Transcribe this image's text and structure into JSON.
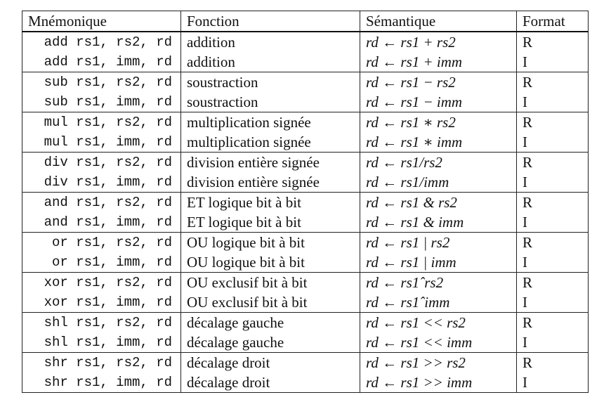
{
  "headers": {
    "mnemonic": "Mnémonique",
    "function": "Fonction",
    "semantic": "Sémantique",
    "format": "Format"
  },
  "rows": [
    {
      "mnemonic": "add rs1, rs2, rd",
      "function": "addition",
      "semantic": "rd ← rs1 + rs2",
      "format": "R"
    },
    {
      "mnemonic": "add rs1, imm, rd",
      "function": "addition",
      "semantic": "rd ← rs1 + imm",
      "format": "I"
    },
    {
      "mnemonic": "sub rs1, rs2, rd",
      "function": "soustraction",
      "semantic": "rd ← rs1 − rs2",
      "format": "R"
    },
    {
      "mnemonic": "sub rs1, imm, rd",
      "function": "soustraction",
      "semantic": "rd ← rs1 − imm",
      "format": "I"
    },
    {
      "mnemonic": "mul rs1, rs2, rd",
      "function": "multiplication signée",
      "semantic": "rd ← rs1 ∗ rs2",
      "format": "R"
    },
    {
      "mnemonic": "mul rs1, imm, rd",
      "function": "multiplication signée",
      "semantic": "rd ← rs1 ∗ imm",
      "format": "I"
    },
    {
      "mnemonic": "div rs1, rs2, rd",
      "function": "division entière signée",
      "semantic": "rd ← rs1/rs2",
      "format": "R"
    },
    {
      "mnemonic": "div rs1, imm, rd",
      "function": "division entière signée",
      "semantic": "rd ← rs1/imm",
      "format": "I"
    },
    {
      "mnemonic": "and rs1, rs2, rd",
      "function": "ET logique bit à bit",
      "semantic": "rd ← rs1 & rs2",
      "format": "R"
    },
    {
      "mnemonic": "and rs1, imm, rd",
      "function": "ET logique bit à bit",
      "semantic": "rd ← rs1 & imm",
      "format": "I"
    },
    {
      "mnemonic": "or rs1, rs2, rd",
      "function": "OU logique bit à bit",
      "semantic": "rd ← rs1 | rs2",
      "format": "R"
    },
    {
      "mnemonic": "or rs1, imm, rd",
      "function": "OU logique bit à bit",
      "semantic": "rd ← rs1 | imm",
      "format": "I"
    },
    {
      "mnemonic": "xor rs1, rs2, rd",
      "function": "OU exclusif bit à bit",
      "semantic": "rd ← rs1ˆrs2",
      "format": "R"
    },
    {
      "mnemonic": "xor rs1, imm, rd",
      "function": "OU exclusif bit à bit",
      "semantic": "rd ← rs1ˆimm",
      "format": "I"
    },
    {
      "mnemonic": "shl rs1, rs2, rd",
      "function": "décalage gauche",
      "semantic": "rd ← rs1 << rs2",
      "format": "R"
    },
    {
      "mnemonic": "shl rs1, imm, rd",
      "function": "décalage gauche",
      "semantic": "rd ← rs1 << imm",
      "format": "I"
    },
    {
      "mnemonic": "shr rs1, rs2, rd",
      "function": "décalage droit",
      "semantic": "rd ← rs1 >> rs2",
      "format": "R"
    },
    {
      "mnemonic": "shr rs1, imm, rd",
      "function": "décalage droit",
      "semantic": "rd ← rs1 >> imm",
      "format": "I"
    }
  ]
}
